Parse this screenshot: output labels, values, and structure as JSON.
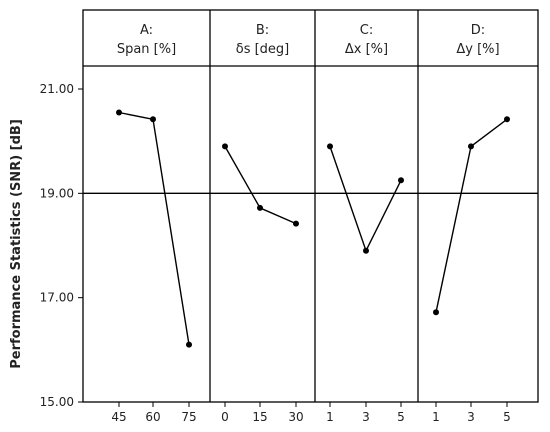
{
  "chart_data": {
    "type": "line",
    "ylabel": "Performance Statistics (SNR) [dB]",
    "ylim": [
      15.0,
      21.0
    ],
    "yticks": [
      "15.00",
      "17.00",
      "19.00",
      "21.00"
    ],
    "reference_line": 19.0,
    "panels": [
      {
        "title_line1": "A:",
        "title_line2": "Span [%]",
        "categories": [
          "45",
          "60",
          "75"
        ],
        "values": [
          20.55,
          20.42,
          16.1
        ]
      },
      {
        "title_line1": "B:",
        "title_line2": "δs [deg]",
        "categories": [
          "0",
          "15",
          "30"
        ],
        "values": [
          19.9,
          18.72,
          18.42
        ]
      },
      {
        "title_line1": "C:",
        "title_line2": "Δx [%]",
        "categories": [
          "1",
          "3",
          "5"
        ],
        "values": [
          19.9,
          17.9,
          19.25
        ]
      },
      {
        "title_line1": "D:",
        "title_line2": "Δy [%]",
        "categories": [
          "1",
          "3",
          "5"
        ],
        "values": [
          16.72,
          19.9,
          20.42
        ]
      }
    ]
  }
}
